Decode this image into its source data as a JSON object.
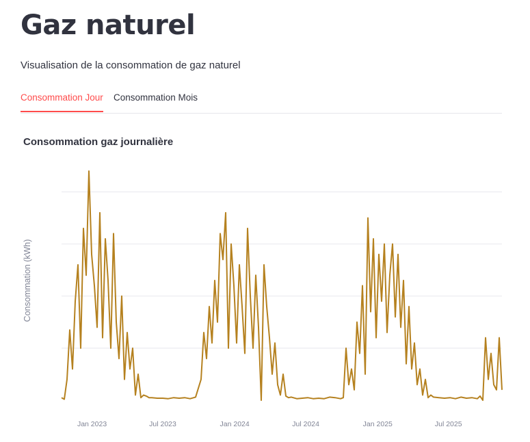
{
  "page": {
    "title": "Gaz naturel",
    "subtitle": "Visualisation de la consommation de gaz naturel"
  },
  "tabs": [
    {
      "label": "Consommation Jour",
      "active": true
    },
    {
      "label": "Consommation Mois",
      "active": false
    }
  ],
  "colors": {
    "accent": "#ff4b4b",
    "series": "#b5811f",
    "grid": "#e8e8ee",
    "axis_text": "#808495"
  },
  "chart_data": {
    "type": "line",
    "title": "Consommation gaz journalière",
    "xlabel": "",
    "ylabel": "Consommation (kWh)",
    "x_start": "2022-10-15",
    "x_end": "2025-11-15",
    "x_ticks": [
      "Jan 2023",
      "Jul 2023",
      "Jan 2024",
      "Jul 2024",
      "Jan 2025",
      "Jul 2025"
    ],
    "x_tick_dates": [
      "2023-01-01",
      "2023-07-01",
      "2024-01-01",
      "2024-07-01",
      "2025-01-01",
      "2025-07-01"
    ],
    "ylim": [
      0,
      4.4
    ],
    "y_gridlines": [
      1,
      2,
      3,
      4
    ],
    "y_tick_labels_visible": false,
    "grid": true,
    "legend": false,
    "series": [
      {
        "x": [
          "2022-10-15",
          "2022-10-22",
          "2022-10-29",
          "2022-11-05",
          "2022-11-12",
          "2022-11-19",
          "2022-11-26",
          "2022-12-03",
          "2022-12-10",
          "2022-12-17",
          "2022-12-24",
          "2022-12-31",
          "2023-01-07",
          "2023-01-14",
          "2023-01-21",
          "2023-01-28",
          "2023-02-04",
          "2023-02-11",
          "2023-02-18",
          "2023-02-25",
          "2023-03-04",
          "2023-03-11",
          "2023-03-18",
          "2023-03-25",
          "2023-04-01",
          "2023-04-08",
          "2023-04-15",
          "2023-04-22",
          "2023-04-29",
          "2023-05-06",
          "2023-05-13",
          "2023-05-20",
          "2023-05-27",
          "2023-06-03",
          "2023-06-17",
          "2023-07-01",
          "2023-07-15",
          "2023-07-29",
          "2023-08-12",
          "2023-08-26",
          "2023-09-09",
          "2023-09-23",
          "2023-10-07",
          "2023-10-14",
          "2023-10-21",
          "2023-10-28",
          "2023-11-04",
          "2023-11-11",
          "2023-11-18",
          "2023-11-25",
          "2023-12-02",
          "2023-12-09",
          "2023-12-16",
          "2023-12-23",
          "2023-12-30",
          "2024-01-06",
          "2024-01-13",
          "2024-01-20",
          "2024-01-27",
          "2024-02-03",
          "2024-02-10",
          "2024-02-17",
          "2024-02-24",
          "2024-03-02",
          "2024-03-09",
          "2024-03-16",
          "2024-03-23",
          "2024-03-30",
          "2024-04-06",
          "2024-04-13",
          "2024-04-20",
          "2024-04-27",
          "2024-05-04",
          "2024-05-11",
          "2024-05-18",
          "2024-05-25",
          "2024-06-08",
          "2024-06-22",
          "2024-07-06",
          "2024-07-20",
          "2024-08-03",
          "2024-08-17",
          "2024-08-31",
          "2024-09-14",
          "2024-09-28",
          "2024-10-05",
          "2024-10-12",
          "2024-10-19",
          "2024-10-26",
          "2024-11-02",
          "2024-11-09",
          "2024-11-16",
          "2024-11-23",
          "2024-11-30",
          "2024-12-07",
          "2024-12-14",
          "2024-12-21",
          "2024-12-28",
          "2025-01-04",
          "2025-01-11",
          "2025-01-18",
          "2025-01-25",
          "2025-02-01",
          "2025-02-08",
          "2025-02-15",
          "2025-02-22",
          "2025-03-01",
          "2025-03-08",
          "2025-03-15",
          "2025-03-22",
          "2025-03-29",
          "2025-04-05",
          "2025-04-12",
          "2025-04-19",
          "2025-04-26",
          "2025-05-03",
          "2025-05-10",
          "2025-05-17",
          "2025-05-24",
          "2025-06-07",
          "2025-06-21",
          "2025-07-05",
          "2025-07-19",
          "2025-08-02",
          "2025-08-16",
          "2025-08-30",
          "2025-09-13",
          "2025-09-20",
          "2025-09-27",
          "2025-10-04",
          "2025-10-11",
          "2025-10-18",
          "2025-10-25",
          "2025-11-01",
          "2025-11-08",
          "2025-11-15"
        ],
        "y": [
          0.05,
          0.02,
          0.4,
          1.35,
          0.6,
          1.9,
          2.6,
          1.0,
          3.3,
          2.4,
          4.4,
          2.8,
          2.2,
          1.4,
          3.6,
          1.2,
          3.1,
          2.3,
          1.0,
          3.2,
          1.5,
          0.8,
          2.0,
          0.4,
          1.3,
          0.6,
          1.0,
          0.1,
          0.5,
          0.05,
          0.1,
          0.08,
          0.05,
          0.05,
          0.04,
          0.04,
          0.03,
          0.05,
          0.04,
          0.05,
          0.03,
          0.06,
          0.4,
          1.3,
          0.8,
          1.8,
          1.1,
          2.3,
          1.5,
          3.2,
          2.7,
          3.6,
          1.0,
          3.0,
          2.2,
          1.1,
          2.6,
          1.8,
          0.9,
          3.3,
          2.0,
          1.0,
          2.4,
          1.4,
          0.0,
          2.6,
          1.8,
          1.2,
          0.5,
          1.1,
          0.3,
          0.1,
          0.5,
          0.08,
          0.05,
          0.06,
          0.03,
          0.04,
          0.05,
          0.03,
          0.04,
          0.03,
          0.06,
          0.05,
          0.03,
          0.05,
          1.0,
          0.3,
          0.6,
          0.2,
          1.5,
          0.9,
          2.2,
          0.5,
          3.5,
          1.7,
          3.1,
          1.2,
          2.8,
          1.9,
          3.0,
          1.3,
          2.4,
          3.0,
          1.6,
          2.8,
          1.4,
          2.3,
          0.7,
          1.8,
          0.6,
          1.1,
          0.3,
          0.6,
          0.1,
          0.4,
          0.05,
          0.1,
          0.06,
          0.05,
          0.04,
          0.05,
          0.03,
          0.06,
          0.04,
          0.05,
          0.03,
          0.08,
          0.0,
          1.2,
          0.4,
          0.9,
          0.3,
          0.2,
          1.2,
          0.2
        ]
      }
    ]
  }
}
